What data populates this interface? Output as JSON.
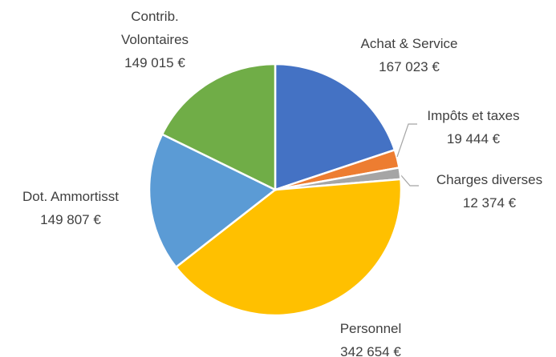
{
  "chart_data": {
    "type": "pie",
    "categories": [
      "Achat & Service",
      "Impôts et taxes",
      "Charges diverses",
      "Personnel",
      "Dot. Ammortisst",
      "Contrib. Volontaires"
    ],
    "values": [
      167023,
      19444,
      12374,
      342654,
      149807,
      149015
    ],
    "value_labels": [
      "167 023 €",
      "19 444 €",
      "12 374 €",
      "342 654 €",
      "149 807 €",
      "149 015 €"
    ],
    "colors": [
      "#4472c4",
      "#ed7d31",
      "#a5a5a5",
      "#ffc000",
      "#5b9bd5",
      "#70ad47"
    ]
  }
}
